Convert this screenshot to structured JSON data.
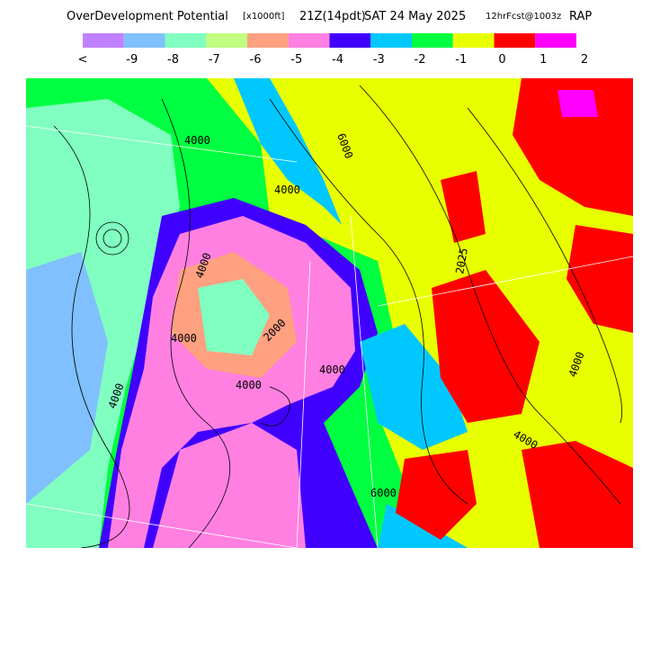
{
  "header": {
    "title": "OverDevelopment Potential",
    "units": "[x1000ft]",
    "valid_time": "21Z(14pdt)",
    "date": "SAT 24 May 2025",
    "forecast": "12hrFcst@1003z",
    "model": "RAP"
  },
  "legend": {
    "colors": [
      "#c080ff",
      "#80c0ff",
      "#80ffc0",
      "#c0ff80",
      "#ffa080",
      "#ff80e0",
      "#4000ff",
      "#00c8ff",
      "#00ff40",
      "#e8ff00",
      "#ff0000",
      "#ff00ff"
    ],
    "labels": [
      "<",
      "-9",
      "-8",
      "-7",
      "-6",
      "-5",
      "-4",
      "-3",
      "-2",
      "-1",
      "0",
      "1",
      "2"
    ]
  },
  "map": {
    "contour_labels": [
      "4000",
      "6000",
      "4000",
      "4000",
      "4000",
      "2000",
      "4000",
      "4000",
      "4000",
      "6000",
      "4000",
      "2025",
      "4000"
    ]
  }
}
